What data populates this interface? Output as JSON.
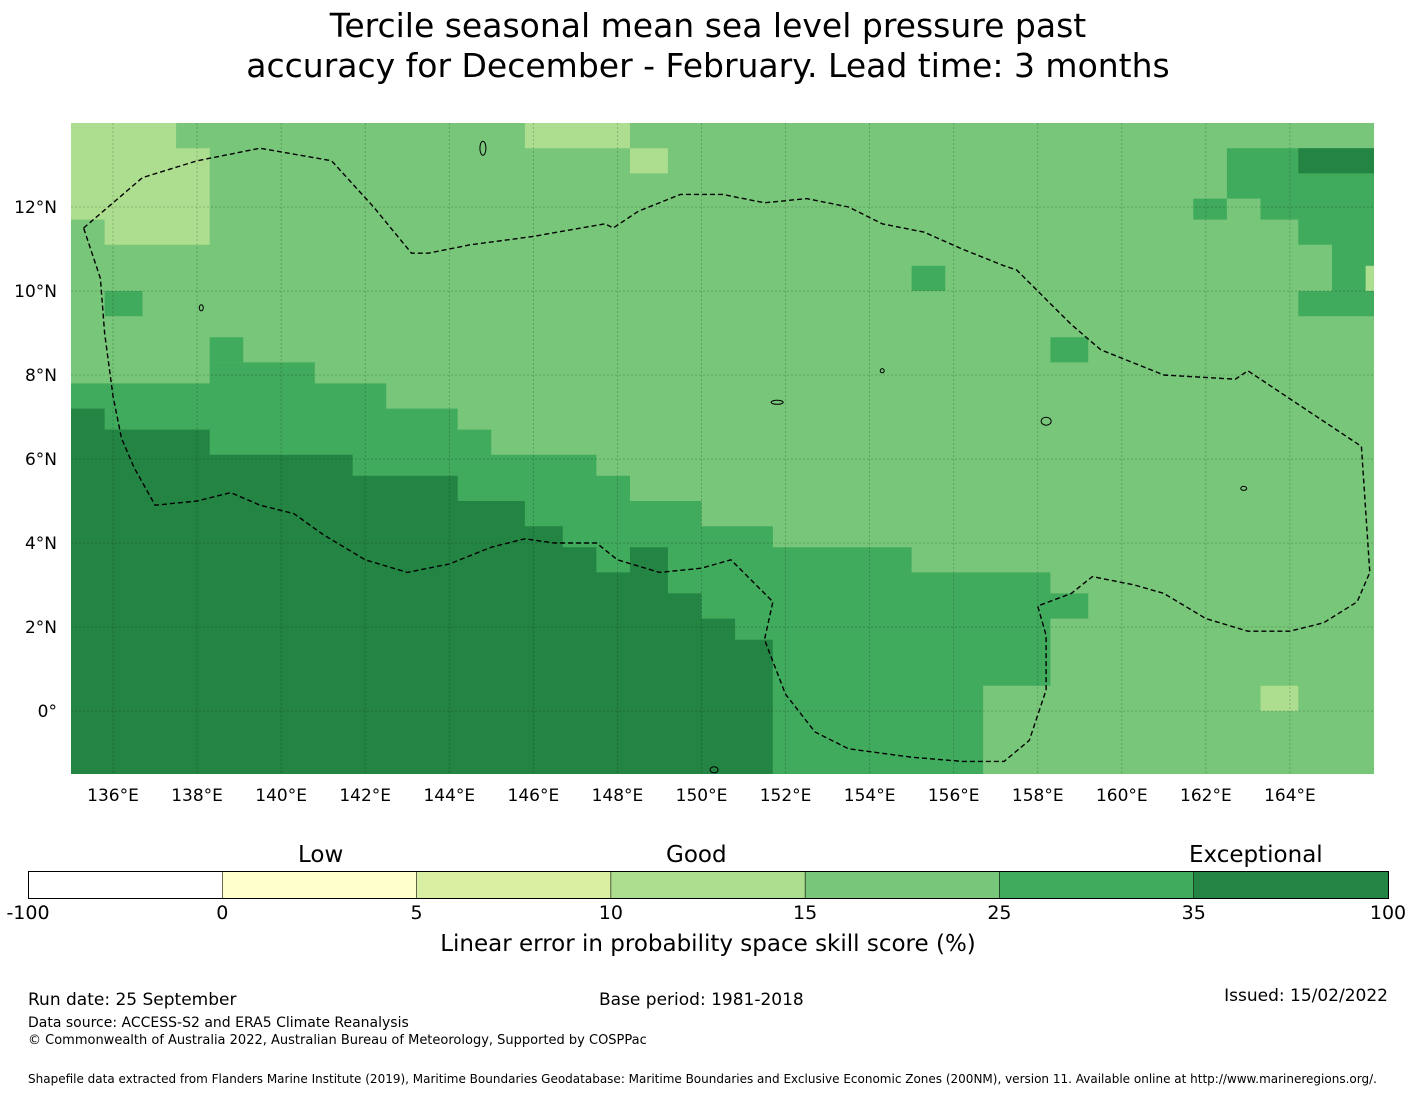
{
  "title": {
    "line1": "Tercile seasonal mean sea level pressure past",
    "line2": "accuracy for December - February. Lead time: 3 months"
  },
  "map": {
    "lon_range": [
      135,
      166
    ],
    "lat_range": [
      -1.5,
      14
    ],
    "x_ticks": [
      {
        "value": 136,
        "label": "136°E"
      },
      {
        "value": 138,
        "label": "138°E"
      },
      {
        "value": 140,
        "label": "140°E"
      },
      {
        "value": 142,
        "label": "142°E"
      },
      {
        "value": 144,
        "label": "144°E"
      },
      {
        "value": 146,
        "label": "146°E"
      },
      {
        "value": 148,
        "label": "148°E"
      },
      {
        "value": 150,
        "label": "150°E"
      },
      {
        "value": 152,
        "label": "152°E"
      },
      {
        "value": 154,
        "label": "154°E"
      },
      {
        "value": 156,
        "label": "156°E"
      },
      {
        "value": 158,
        "label": "158°E"
      },
      {
        "value": 160,
        "label": "160°E"
      },
      {
        "value": 162,
        "label": "162°E"
      },
      {
        "value": 164,
        "label": "164°E"
      }
    ],
    "y_ticks": [
      {
        "value": 12,
        "label": "12°N"
      },
      {
        "value": 10,
        "label": "10°N"
      },
      {
        "value": 8,
        "label": "8°N"
      },
      {
        "value": 6,
        "label": "6°N"
      },
      {
        "value": 4,
        "label": "4°N"
      },
      {
        "value": 2,
        "label": "2°N"
      },
      {
        "value": 0,
        "label": "0°"
      }
    ],
    "base_color": "#78c679",
    "class_colors": {
      "c15": "#addd8e",
      "c25": "#78c679",
      "c35": "#41ab5d",
      "c100": "#238443"
    },
    "regions": [
      {
        "class": "c35",
        "rings": [
          [
            [
              135,
              7.8
            ],
            [
              138.3,
              7.8
            ],
            [
              138.3,
              8.3
            ],
            [
              139.1,
              8.3
            ],
            [
              139.1,
              8.3
            ],
            [
              140.8,
              8.3
            ],
            [
              140.8,
              7.8
            ],
            [
              142.5,
              7.8
            ],
            [
              142.5,
              7.2
            ],
            [
              144.2,
              7.2
            ],
            [
              144.2,
              6.7
            ],
            [
              145.0,
              6.7
            ],
            [
              145.0,
              6.1
            ],
            [
              147.5,
              6.1
            ],
            [
              147.5,
              5.6
            ],
            [
              148.3,
              5.6
            ],
            [
              148.3,
              5.0
            ],
            [
              150.0,
              5.0
            ],
            [
              150.0,
              4.4
            ],
            [
              151.7,
              4.4
            ],
            [
              151.7,
              3.9
            ],
            [
              155.0,
              3.9
            ],
            [
              155.0,
              3.3
            ],
            [
              158.3,
              3.3
            ],
            [
              158.3,
              2.2
            ],
            [
              159.2,
              2.2
            ],
            [
              159.2,
              2.8
            ],
            [
              158.3,
              2.8
            ],
            [
              158.3,
              0.6
            ],
            [
              156.7,
              0.6
            ],
            [
              156.7,
              -1.5
            ],
            [
              151.7,
              -1.5
            ],
            [
              151.7,
              1.7
            ],
            [
              151.7,
              1.7
            ],
            [
              135,
              1.7
            ]
          ]
        ]
      },
      {
        "class": "c100",
        "rings": [
          [
            [
              135,
              7.2
            ],
            [
              135.8,
              7.2
            ],
            [
              135.8,
              6.7
            ],
            [
              138.3,
              6.7
            ],
            [
              138.3,
              6.1
            ],
            [
              141.7,
              6.1
            ],
            [
              141.7,
              5.6
            ],
            [
              144.2,
              5.6
            ],
            [
              144.2,
              5.0
            ],
            [
              145.8,
              5.0
            ],
            [
              145.8,
              4.4
            ],
            [
              146.7,
              4.4
            ],
            [
              146.7,
              3.9
            ],
            [
              147.5,
              3.9
            ],
            [
              147.5,
              3.3
            ],
            [
              149.2,
              3.3
            ],
            [
              149.2,
              2.8
            ],
            [
              150.0,
              2.8
            ],
            [
              150.0,
              2.2
            ],
            [
              150.8,
              2.2
            ],
            [
              150.8,
              1.7
            ],
            [
              151.7,
              1.7
            ],
            [
              151.7,
              -1.5
            ],
            [
              135,
              -1.5
            ]
          ]
        ]
      },
      {
        "class": "c15",
        "rings": [
          [
            [
              135,
              14
            ],
            [
              137.5,
              14
            ],
            [
              137.5,
              13.4
            ],
            [
              138.3,
              13.4
            ],
            [
              138.3,
              12.8
            ],
            [
              138.3,
              11.1
            ],
            [
              136.7,
              11.1
            ],
            [
              136.7,
              11.1
            ],
            [
              135.8,
              11.1
            ],
            [
              135.8,
              11.7
            ],
            [
              135,
              11.7
            ]
          ],
          [
            [
              145.8,
              14
            ],
            [
              148.3,
              14
            ],
            [
              148.3,
              13.4
            ],
            [
              147.5,
              13.4
            ],
            [
              147.5,
              13.4
            ],
            [
              146.7,
              13.4
            ],
            [
              146.7,
              13.4
            ],
            [
              145.8,
              13.4
            ]
          ],
          [
            [
              148.3,
              13.4
            ],
            [
              149.2,
              13.4
            ],
            [
              149.2,
              12.8
            ],
            [
              148.3,
              12.8
            ]
          ],
          [
            [
              163.3,
              0.6
            ],
            [
              164.2,
              0.6
            ],
            [
              164.2,
              0
            ],
            [
              163.3,
              0
            ]
          ],
          [
            [
              165.8,
              10.6
            ],
            [
              166,
              10.6
            ],
            [
              166,
              10
            ],
            [
              165.8,
              10
            ]
          ]
        ]
      },
      {
        "class": "c35",
        "rings": [
          [
            [
              162.5,
              13.4
            ],
            [
              166,
              13.4
            ],
            [
              166,
              10.6
            ],
            [
              165.8,
              10.6
            ],
            [
              165.8,
              10.0
            ],
            [
              165,
              10.0
            ],
            [
              165,
              11.1
            ],
            [
              164.2,
              11.1
            ],
            [
              164.2,
              11.7
            ],
            [
              163.3,
              11.7
            ],
            [
              163.3,
              12.2
            ],
            [
              162.5,
              12.2
            ]
          ],
          [
            [
              161.7,
              12.2
            ],
            [
              162.5,
              12.2
            ],
            [
              162.5,
              11.7
            ],
            [
              161.7,
              11.7
            ]
          ],
          [
            [
              164.2,
              10
            ],
            [
              166,
              10
            ],
            [
              166,
              9.4
            ],
            [
              164.2,
              9.4
            ]
          ],
          [
            [
              155.0,
              10.6
            ],
            [
              155.8,
              10.6
            ],
            [
              155.8,
              10.0
            ],
            [
              155.0,
              10.0
            ]
          ],
          [
            [
              158.3,
              8.9
            ],
            [
              159.2,
              8.9
            ],
            [
              159.2,
              8.3
            ],
            [
              158.3,
              8.3
            ]
          ],
          [
            [
              135.8,
              10
            ],
            [
              136.7,
              10
            ],
            [
              136.7,
              9.4
            ],
            [
              135.8,
              9.4
            ]
          ],
          [
            [
              138.3,
              8.9
            ],
            [
              139.1,
              8.9
            ],
            [
              139.1,
              8.3
            ],
            [
              138.3,
              8.3
            ]
          ],
          [
            [
              148.3,
              3.9
            ],
            [
              149.2,
              3.9
            ],
            [
              149.2,
              3.3
            ],
            [
              148.3,
              3.3
            ]
          ]
        ]
      },
      {
        "class": "c100",
        "rings": [
          [
            [
              148.3,
              3.9
            ],
            [
              149.2,
              3.9
            ],
            [
              149.2,
              3.3
            ],
            [
              148.3,
              3.3
            ]
          ],
          [
            [
              164.2,
              13.4
            ],
            [
              166,
              13.4
            ],
            [
              166,
              12.8
            ],
            [
              164.2,
              12.8
            ]
          ]
        ]
      }
    ],
    "boundary": [
      [
        135.3,
        11.5
      ],
      [
        136.7,
        12.7
      ],
      [
        138.0,
        13.1
      ],
      [
        139.5,
        13.4
      ],
      [
        141.2,
        13.1
      ],
      [
        142.2,
        12.0
      ],
      [
        143.1,
        10.9
      ],
      [
        143.5,
        10.9
      ],
      [
        144.5,
        11.1
      ],
      [
        146.0,
        11.3
      ],
      [
        147.7,
        11.6
      ],
      [
        147.9,
        11.5
      ],
      [
        148.5,
        11.9
      ],
      [
        149.5,
        12.3
      ],
      [
        150.5,
        12.3
      ],
      [
        151.5,
        12.1
      ],
      [
        152.5,
        12.2
      ],
      [
        153.5,
        12.0
      ],
      [
        154.3,
        11.6
      ],
      [
        155.3,
        11.4
      ],
      [
        156.2,
        11.0
      ],
      [
        157.2,
        10.6
      ],
      [
        157.5,
        10.5
      ],
      [
        158.0,
        10.0
      ],
      [
        158.8,
        9.2
      ],
      [
        159.5,
        8.6
      ],
      [
        160.5,
        8.2
      ],
      [
        161.0,
        8.0
      ],
      [
        162.7,
        7.9
      ],
      [
        163.0,
        8.1
      ],
      [
        164.2,
        7.3
      ],
      [
        165.7,
        6.3
      ],
      [
        165.9,
        3.3
      ],
      [
        165.6,
        2.6
      ],
      [
        164.8,
        2.1
      ],
      [
        164.0,
        1.9
      ],
      [
        163.0,
        1.9
      ],
      [
        162.0,
        2.2
      ],
      [
        161.0,
        2.8
      ],
      [
        160.3,
        3.0
      ],
      [
        159.3,
        3.2
      ],
      [
        158.8,
        2.8
      ],
      [
        158.0,
        2.5
      ],
      [
        158.2,
        1.8
      ],
      [
        158.2,
        0.5
      ],
      [
        157.8,
        -0.7
      ],
      [
        157.2,
        -1.2
      ],
      [
        156.2,
        -1.2
      ],
      [
        155.0,
        -1.1
      ],
      [
        153.5,
        -0.9
      ],
      [
        152.7,
        -0.5
      ],
      [
        152.0,
        0.4
      ],
      [
        151.5,
        1.7
      ],
      [
        151.7,
        2.6
      ],
      [
        151.2,
        3.1
      ],
      [
        150.7,
        3.6
      ],
      [
        150.0,
        3.4
      ],
      [
        149.0,
        3.3
      ],
      [
        148.0,
        3.6
      ],
      [
        147.5,
        4.0
      ],
      [
        146.5,
        4.0
      ],
      [
        145.8,
        4.1
      ],
      [
        145.0,
        3.9
      ],
      [
        144.0,
        3.5
      ],
      [
        143.0,
        3.3
      ],
      [
        142.0,
        3.6
      ],
      [
        141.0,
        4.2
      ],
      [
        140.3,
        4.7
      ],
      [
        139.5,
        4.9
      ],
      [
        138.8,
        5.2
      ],
      [
        138.0,
        5.0
      ],
      [
        137.0,
        4.9
      ],
      [
        136.5,
        5.8
      ],
      [
        136.2,
        6.5
      ],
      [
        136.0,
        7.5
      ],
      [
        135.8,
        9.0
      ],
      [
        135.7,
        10.3
      ],
      [
        135.3,
        11.5
      ]
    ],
    "islands": [
      {
        "lon": 144.8,
        "lat": 13.4,
        "rx": 3,
        "ry": 7
      },
      {
        "lon": 138.1,
        "lat": 9.6,
        "rx": 2,
        "ry": 3
      },
      {
        "lon": 151.8,
        "lat": 7.35,
        "rx": 6,
        "ry": 2
      },
      {
        "lon": 158.2,
        "lat": 6.9,
        "rx": 5,
        "ry": 4
      },
      {
        "lon": 162.9,
        "lat": 5.3,
        "rx": 3,
        "ry": 2
      },
      {
        "lon": 154.3,
        "lat": 8.1,
        "rx": 2,
        "ry": 2
      },
      {
        "lon": 150.3,
        "lat": -1.4,
        "rx": 4,
        "ry": 3
      }
    ]
  },
  "colorbar": {
    "categories": [
      {
        "label": "Low",
        "value": 5
      },
      {
        "label": "Good",
        "value": 15
      },
      {
        "label": "Exceptional",
        "value": 70
      }
    ],
    "bins": [
      {
        "from": -100,
        "to": 0,
        "color": "#ffffff"
      },
      {
        "from": 0,
        "to": 5,
        "color": "#ffffcc"
      },
      {
        "from": 5,
        "to": 10,
        "color": "#d9f0a3"
      },
      {
        "from": 10,
        "to": 15,
        "color": "#addd8e"
      },
      {
        "from": 15,
        "to": 25,
        "color": "#78c679"
      },
      {
        "from": 25,
        "to": 35,
        "color": "#41ab5d"
      },
      {
        "from": 35,
        "to": 100,
        "color": "#238443"
      }
    ],
    "tick_labels": [
      "-100",
      "0",
      "5",
      "10",
      "15",
      "25",
      "35",
      "100"
    ],
    "label": "Linear error in probability space skill score (%)"
  },
  "footer": {
    "run_date": "Run date: 25 September",
    "base_period": "Base period: 1981-2018",
    "issued": "Issued: 15/02/2022",
    "data_source": "Data source: ACCESS-S2 and ERA5 Climate Reanalysis",
    "copyright": "© Commonwealth of Australia 2022, Australian Bureau of Meteorology, Supported by COSPPac",
    "shapefile": "Shapefile data extracted from Flanders Marine Institute (2019), Maritime Boundaries Geodatabase: Maritime Boundaries and Exclusive Economic Zones (200NM), version 11. Available online at http://www.marineregions.org/."
  }
}
